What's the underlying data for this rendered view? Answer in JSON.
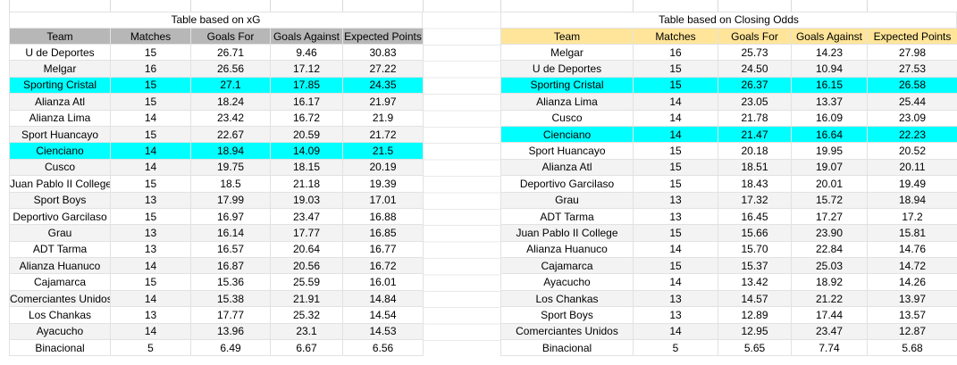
{
  "colors": {
    "header_gray": "#b7b7b7",
    "header_tan": "#ffe599",
    "highlight_cyan": "#00ffff",
    "band_gray": "#f3f3f3",
    "gridline": "#e2e2e2"
  },
  "left_table": {
    "title": "Table based on xG",
    "columns": [
      "Team",
      "Matches",
      "Goals For",
      "Goals Against",
      "Expected Points"
    ],
    "rows": [
      {
        "team": "U de Deportes",
        "matches": "15",
        "gf": "26.71",
        "ga": "9.46",
        "xp": "30.83",
        "highlight": false
      },
      {
        "team": "Melgar",
        "matches": "16",
        "gf": "26.56",
        "ga": "17.12",
        "xp": "27.22",
        "highlight": false
      },
      {
        "team": "Sporting Cristal",
        "matches": "15",
        "gf": "27.1",
        "ga": "17.85",
        "xp": "24.35",
        "highlight": true
      },
      {
        "team": "Alianza Atl",
        "matches": "15",
        "gf": "18.24",
        "ga": "16.17",
        "xp": "21.97",
        "highlight": false
      },
      {
        "team": "Alianza Lima",
        "matches": "14",
        "gf": "23.42",
        "ga": "16.72",
        "xp": "21.9",
        "highlight": false
      },
      {
        "team": "Sport Huancayo",
        "matches": "15",
        "gf": "22.67",
        "ga": "20.59",
        "xp": "21.72",
        "highlight": false
      },
      {
        "team": "Cienciano",
        "matches": "14",
        "gf": "18.94",
        "ga": "14.09",
        "xp": "21.5",
        "highlight": true
      },
      {
        "team": "Cusco",
        "matches": "14",
        "gf": "19.75",
        "ga": "18.15",
        "xp": "20.19",
        "highlight": false
      },
      {
        "team": "Juan Pablo II College",
        "matches": "15",
        "gf": "18.5",
        "ga": "21.18",
        "xp": "19.39",
        "highlight": false
      },
      {
        "team": "Sport Boys",
        "matches": "13",
        "gf": "17.99",
        "ga": "19.03",
        "xp": "17.01",
        "highlight": false
      },
      {
        "team": "Deportivo Garcilaso",
        "matches": "15",
        "gf": "16.97",
        "ga": "23.47",
        "xp": "16.88",
        "highlight": false
      },
      {
        "team": "Grau",
        "matches": "13",
        "gf": "16.14",
        "ga": "17.77",
        "xp": "16.85",
        "highlight": false
      },
      {
        "team": "ADT Tarma",
        "matches": "13",
        "gf": "16.57",
        "ga": "20.64",
        "xp": "16.77",
        "highlight": false
      },
      {
        "team": "Alianza Huanuco",
        "matches": "14",
        "gf": "16.87",
        "ga": "20.56",
        "xp": "16.72",
        "highlight": false
      },
      {
        "team": "Cajamarca",
        "matches": "15",
        "gf": "15.36",
        "ga": "25.59",
        "xp": "16.01",
        "highlight": false
      },
      {
        "team": "Comerciantes Unidos",
        "matches": "14",
        "gf": "15.38",
        "ga": "21.91",
        "xp": "14.84",
        "highlight": false
      },
      {
        "team": "Los Chankas",
        "matches": "13",
        "gf": "17.77",
        "ga": "25.32",
        "xp": "14.54",
        "highlight": false
      },
      {
        "team": "Ayacucho",
        "matches": "14",
        "gf": "13.96",
        "ga": "23.1",
        "xp": "14.53",
        "highlight": false
      },
      {
        "team": "Binacional",
        "matches": "5",
        "gf": "6.49",
        "ga": "6.67",
        "xp": "6.56",
        "highlight": false
      }
    ]
  },
  "right_table": {
    "title": "Table based on Closing Odds",
    "columns": [
      "Team",
      "Matches",
      "Goals For",
      "Goals Against",
      "Expected Points"
    ],
    "rows": [
      {
        "team": "Melgar",
        "matches": "16",
        "gf": "25.73",
        "ga": "14.23",
        "xp": "27.98",
        "highlight": false
      },
      {
        "team": "U de Deportes",
        "matches": "15",
        "gf": "24.50",
        "ga": "10.94",
        "xp": "27.53",
        "highlight": false
      },
      {
        "team": "Sporting Cristal",
        "matches": "15",
        "gf": "26.37",
        "ga": "16.15",
        "xp": "26.58",
        "highlight": true
      },
      {
        "team": "Alianza Lima",
        "matches": "14",
        "gf": "23.05",
        "ga": "13.37",
        "xp": "25.44",
        "highlight": false
      },
      {
        "team": "Cusco",
        "matches": "14",
        "gf": "21.78",
        "ga": "16.09",
        "xp": "23.09",
        "highlight": false
      },
      {
        "team": "Cienciano",
        "matches": "14",
        "gf": "21.47",
        "ga": "16.64",
        "xp": "22.23",
        "highlight": true
      },
      {
        "team": "Sport Huancayo",
        "matches": "15",
        "gf": "20.18",
        "ga": "19.95",
        "xp": "20.52",
        "highlight": false
      },
      {
        "team": "Alianza Atl",
        "matches": "15",
        "gf": "18.51",
        "ga": "19.07",
        "xp": "20.11",
        "highlight": false
      },
      {
        "team": "Deportivo Garcilaso",
        "matches": "15",
        "gf": "18.43",
        "ga": "20.01",
        "xp": "19.49",
        "highlight": false
      },
      {
        "team": "Grau",
        "matches": "13",
        "gf": "17.32",
        "ga": "15.72",
        "xp": "18.94",
        "highlight": false
      },
      {
        "team": "ADT Tarma",
        "matches": "13",
        "gf": "16.45",
        "ga": "17.27",
        "xp": "17.2",
        "highlight": false
      },
      {
        "team": "Juan Pablo II College",
        "matches": "15",
        "gf": "15.66",
        "ga": "23.90",
        "xp": "15.81",
        "highlight": false
      },
      {
        "team": "Alianza Huanuco",
        "matches": "14",
        "gf": "15.70",
        "ga": "22.84",
        "xp": "14.76",
        "highlight": false
      },
      {
        "team": "Cajamarca",
        "matches": "15",
        "gf": "15.37",
        "ga": "25.03",
        "xp": "14.72",
        "highlight": false
      },
      {
        "team": "Ayacucho",
        "matches": "14",
        "gf": "13.42",
        "ga": "18.92",
        "xp": "14.26",
        "highlight": false
      },
      {
        "team": "Los Chankas",
        "matches": "13",
        "gf": "14.57",
        "ga": "21.22",
        "xp": "13.97",
        "highlight": false
      },
      {
        "team": "Sport Boys",
        "matches": "13",
        "gf": "12.89",
        "ga": "17.44",
        "xp": "13.57",
        "highlight": false
      },
      {
        "team": "Comerciantes Unidos",
        "matches": "14",
        "gf": "12.95",
        "ga": "23.47",
        "xp": "12.87",
        "highlight": false
      },
      {
        "team": "Binacional",
        "matches": "5",
        "gf": "5.65",
        "ga": "7.74",
        "xp": "5.68",
        "highlight": false
      }
    ]
  }
}
